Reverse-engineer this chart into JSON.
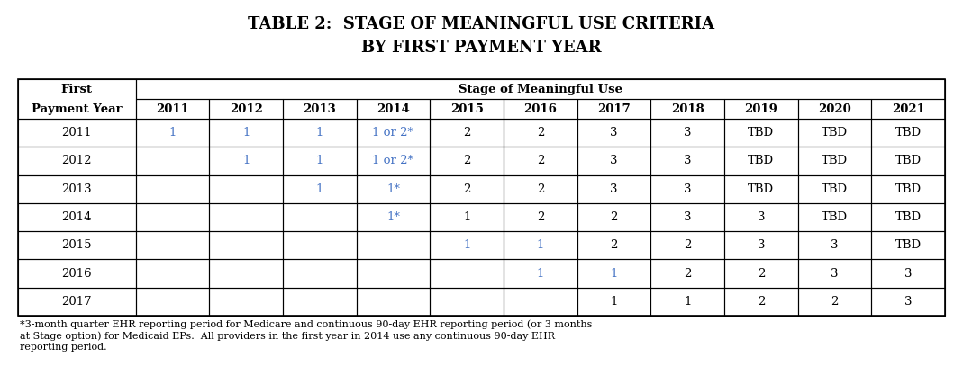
{
  "title_line1": "TABLE 2:  STAGE OF MEANINGFUL USE CRITERIA",
  "title_line2": "BY FIRST PAYMENT YEAR",
  "col_header_span": "Stage of Meaningful Use",
  "year_cols": [
    "2011",
    "2012",
    "2013",
    "2014",
    "2015",
    "2016",
    "2017",
    "2018",
    "2019",
    "2020",
    "2021"
  ],
  "rows": [
    {
      "fpy": "2011",
      "vals": [
        "1",
        "1",
        "1",
        "1 or 2*",
        "2",
        "2",
        "3",
        "3",
        "TBD",
        "TBD",
        "TBD"
      ],
      "blue_cols": [
        0,
        1,
        2,
        3
      ]
    },
    {
      "fpy": "2012",
      "vals": [
        "",
        "1",
        "1",
        "1 or 2*",
        "2",
        "2",
        "3",
        "3",
        "TBD",
        "TBD",
        "TBD"
      ],
      "blue_cols": [
        1,
        2,
        3
      ]
    },
    {
      "fpy": "2013",
      "vals": [
        "",
        "",
        "1",
        "1*",
        "2",
        "2",
        "3",
        "3",
        "TBD",
        "TBD",
        "TBD"
      ],
      "blue_cols": [
        2,
        3
      ]
    },
    {
      "fpy": "2014",
      "vals": [
        "",
        "",
        "",
        "1*",
        "1",
        "2",
        "2",
        "3",
        "3",
        "TBD",
        "TBD"
      ],
      "blue_cols": [
        3
      ]
    },
    {
      "fpy": "2015",
      "vals": [
        "",
        "",
        "",
        "",
        "1",
        "1",
        "2",
        "2",
        "3",
        "3",
        "TBD"
      ],
      "blue_cols": [
        4,
        5
      ]
    },
    {
      "fpy": "2016",
      "vals": [
        "",
        "",
        "",
        "",
        "",
        "1",
        "1",
        "2",
        "2",
        "3",
        "3"
      ],
      "blue_cols": [
        5,
        6
      ]
    },
    {
      "fpy": "2017",
      "vals": [
        "",
        "",
        "",
        "",
        "",
        "",
        "1",
        "1",
        "2",
        "2",
        "3"
      ],
      "blue_cols": []
    }
  ],
  "footnote_lines": [
    "*3-month quarter EHR reporting period for Medicare and continuous 90-day EHR reporting period (or 3 months",
    "at Stage option) for Medicaid EPs.  All providers in the first year in 2014 use any continuous 90-day EHR",
    "reporting period."
  ],
  "blue_color": "#4472C4",
  "black_color": "#000000",
  "bg_color": "#ffffff",
  "title_fontsize": 13,
  "cell_fontsize": 9.5,
  "header_fontsize": 9.5,
  "footnote_fontsize": 8.0
}
